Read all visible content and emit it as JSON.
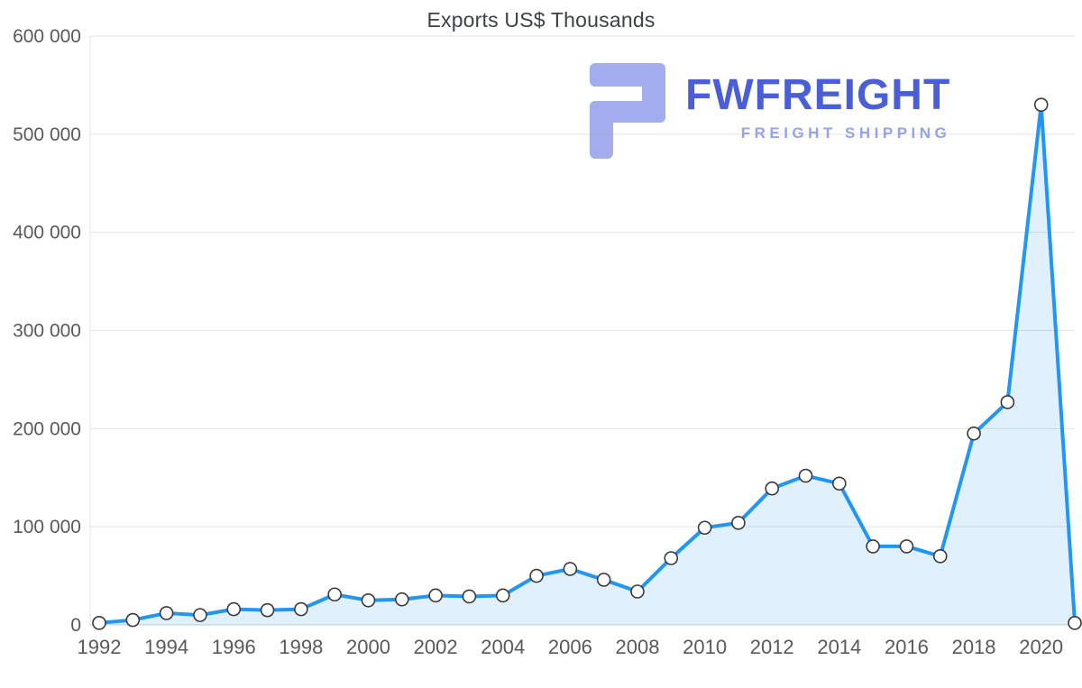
{
  "chart_data": {
    "type": "area",
    "title": "Exports US$ Thousands",
    "x": [
      1992,
      1993,
      1994,
      1995,
      1996,
      1997,
      1998,
      1999,
      2000,
      2001,
      2002,
      2003,
      2004,
      2005,
      2006,
      2007,
      2008,
      2009,
      2010,
      2011,
      2012,
      2013,
      2014,
      2015,
      2016,
      2017,
      2018,
      2019,
      2020,
      2021
    ],
    "values": [
      2000,
      5000,
      12000,
      10000,
      16000,
      15000,
      16000,
      31000,
      25000,
      26000,
      30000,
      29000,
      30000,
      50000,
      57000,
      46000,
      34000,
      68000,
      99000,
      104000,
      139000,
      152000,
      144000,
      80000,
      80000,
      70000,
      195000,
      227000,
      530000,
      2000
    ],
    "ylim": [
      0,
      600000
    ],
    "ytick_step": 100000,
    "ytick_labels": [
      "0",
      "100 000",
      "200 000",
      "300 000",
      "400 000",
      "500 000",
      "600 000"
    ],
    "xtick_years": [
      1992,
      1994,
      1996,
      1998,
      2000,
      2002,
      2004,
      2006,
      2008,
      2010,
      2012,
      2014,
      2016,
      2018,
      2020
    ],
    "grid": true,
    "legend": "none",
    "line_color": "#2196f3",
    "fill_color": "rgba(33,150,243,0.14)",
    "marker_fill": "#ffffff",
    "marker_stroke": "#3a3a3a",
    "grid_color": "#e4e4e4",
    "baseline_color": "#cfcfcf",
    "tick_label_color": "#595959"
  },
  "watermark": {
    "brand": "FWFREIGHT",
    "tagline": "FREIGHT SHIPPING",
    "brand_color": "#4a5fd6",
    "tagline_color": "#93a4ec",
    "icon_color": "#8a97e8"
  }
}
